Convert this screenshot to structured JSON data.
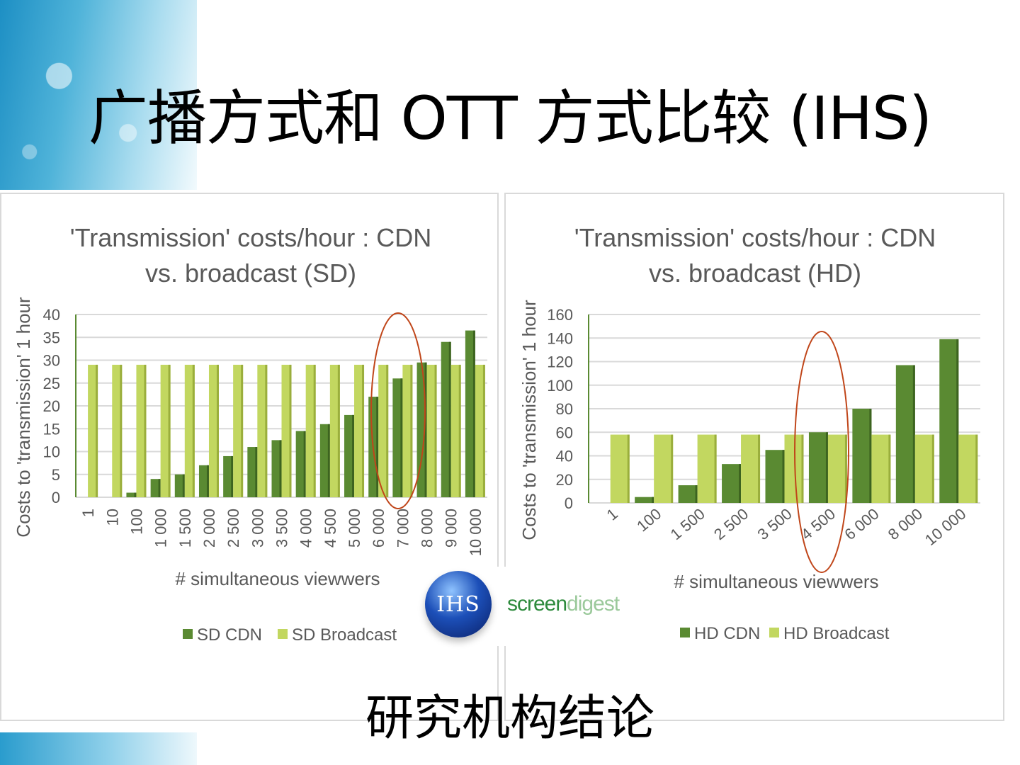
{
  "slide": {
    "title": "广播方式和 OTT 方式比较 (IHS)",
    "conclusion": "研究机构结论"
  },
  "logos": {
    "ihs": "IHS",
    "screendigest_a": "screen",
    "screendigest_b": "digest"
  },
  "colors": {
    "cdn": "#5a8a32",
    "broadcast": "#c2d760",
    "highlight": "#c0461a",
    "grid": "#d9d9d9"
  },
  "chart_data": [
    {
      "type": "bar",
      "title": [
        "'Transmission' costs/hour : CDN",
        "vs. broadcast (SD)"
      ],
      "xlabel": "# simultaneous viewwers",
      "ylabel": "Costs to 'transmission' 1 hour",
      "ylim": [
        0,
        40
      ],
      "yticks": [
        0,
        5,
        10,
        15,
        20,
        25,
        30,
        35,
        40
      ],
      "categories": [
        "1",
        "10",
        "100",
        "1 000",
        "1 500",
        "2 000",
        "2 500",
        "3 000",
        "3 500",
        "4 000",
        "4 500",
        "5 000",
        "6 000",
        "7 000",
        "8 000",
        "9 000",
        "10 000"
      ],
      "series": [
        {
          "name": "SD CDN",
          "values": [
            0,
            0,
            1,
            4,
            5,
            7,
            9,
            11,
            12.5,
            14.5,
            16,
            18,
            22,
            26,
            29.5,
            34,
            36.5
          ]
        },
        {
          "name": "SD Broadcast",
          "values": [
            29,
            29,
            29,
            29,
            29,
            29,
            29,
            29,
            29,
            29,
            29,
            29,
            29,
            29,
            29,
            29,
            29
          ]
        }
      ],
      "legend": "bottom",
      "grid": true,
      "highlight": "6 000 – 7 000"
    },
    {
      "type": "bar",
      "title": [
        "'Transmission' costs/hour : CDN",
        "vs. broadcast (HD)"
      ],
      "xlabel": "# simultaneous viewwers",
      "ylabel": "Costs to 'transmission' 1 hour",
      "ylim": [
        0,
        160
      ],
      "yticks": [
        0,
        20,
        40,
        60,
        80,
        100,
        120,
        140,
        160
      ],
      "categories": [
        "1",
        "100",
        "1 500",
        "2 500",
        "3 500",
        "4 500",
        "6 000",
        "8 000",
        "10 000"
      ],
      "series": [
        {
          "name": "HD CDN",
          "values": [
            0,
            5,
            15,
            33,
            45,
            60,
            80,
            117,
            139
          ]
        },
        {
          "name": "HD Broadcast",
          "values": [
            58,
            58,
            58,
            58,
            58,
            58,
            58,
            58,
            58
          ]
        }
      ],
      "legend": "bottom",
      "grid": true,
      "highlight": "4 500"
    }
  ]
}
